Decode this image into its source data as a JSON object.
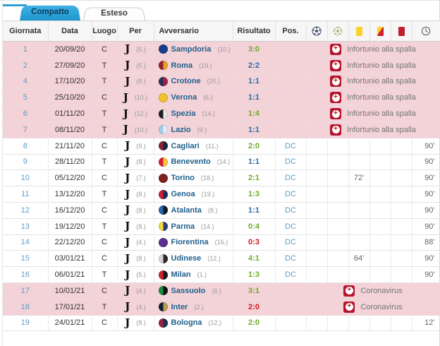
{
  "tabs": [
    {
      "label": "Compatto",
      "active": true
    },
    {
      "label": "Esteso",
      "active": false
    }
  ],
  "columns": {
    "giornata": "Giornata",
    "data": "Data",
    "luogo": "Luogo",
    "per": "Per",
    "avversario": "Avversario",
    "risultato": "Risultato",
    "pos": "Pos."
  },
  "icon_columns": [
    "goals-icon",
    "assists-icon",
    "yellow-card-icon",
    "yellow-red-card-icon",
    "red-card-icon",
    "minutes-clock-icon"
  ],
  "colors": {
    "tab_active": "#2d9fd6",
    "win": "#6faa27",
    "draw": "#2b6da8",
    "loss": "#cf1c24",
    "highlight_row": "#f3d2d8",
    "injury_icon": "#b5152d",
    "link": "#5b9dc9",
    "team_link": "#22618e"
  },
  "rows": [
    {
      "giornata": "1",
      "data": "20/09/20",
      "luogo": "C",
      "per_pos": "(5.)",
      "opponent": "Sampdoria",
      "opponent_pos": "(10.)",
      "result": "3:0",
      "result_type": "win",
      "highlight": true,
      "special": "Infortunio alla spalla",
      "crest": [
        "#1b3c8c",
        "#1b3c8c"
      ]
    },
    {
      "giornata": "2",
      "data": "27/09/20",
      "luogo": "T",
      "per_pos": "(5.)",
      "opponent": "Roma",
      "opponent_pos": "(19.)",
      "result": "2:2",
      "result_type": "draw",
      "highlight": true,
      "special": "Infortunio alla spalla",
      "crest": [
        "#8e2134",
        "#e3a520"
      ]
    },
    {
      "giornata": "4",
      "data": "17/10/20",
      "luogo": "T",
      "per_pos": "(8.)",
      "opponent": "Crotone",
      "opponent_pos": "(20.)",
      "result": "1:1",
      "result_type": "draw",
      "highlight": true,
      "special": "Infortunio alla spalla",
      "crest": [
        "#2a2f5e",
        "#9e2444"
      ]
    },
    {
      "giornata": "5",
      "data": "25/10/20",
      "luogo": "C",
      "per_pos": "(10.)",
      "opponent": "Verona",
      "opponent_pos": "(6.)",
      "result": "1:1",
      "result_type": "draw",
      "highlight": true,
      "special": "Infortunio alla spalla",
      "crest": [
        "#f2c12e",
        "#f2c12e"
      ]
    },
    {
      "giornata": "6",
      "data": "01/11/20",
      "luogo": "T",
      "per_pos": "(12.)",
      "opponent": "Spezia",
      "opponent_pos": "(14.)",
      "result": "1:4",
      "result_type": "win",
      "highlight": true,
      "special": "Infortunio alla spalla",
      "crest": [
        "#1d1d22",
        "#e8e8e8"
      ]
    },
    {
      "giornata": "7",
      "data": "08/11/20",
      "luogo": "T",
      "per_pos": "(10.)",
      "opponent": "Lazio",
      "opponent_pos": "(9.)",
      "result": "1:1",
      "result_type": "draw",
      "highlight": true,
      "special": "Infortunio alla spalla",
      "crest": [
        "#a8cbe8",
        "#dfeefb"
      ]
    },
    {
      "giornata": "8",
      "data": "21/11/20",
      "luogo": "C",
      "per_pos": "(9.)",
      "opponent": "Cagliari",
      "opponent_pos": "(11.)",
      "result": "2:0",
      "result_type": "win",
      "pos": "DC",
      "minutes": "90'",
      "crest": [
        "#8c2332",
        "#13284a"
      ]
    },
    {
      "giornata": "9",
      "data": "28/11/20",
      "luogo": "T",
      "per_pos": "(8.)",
      "opponent": "Benevento",
      "opponent_pos": "(14.)",
      "result": "1:1",
      "result_type": "draw",
      "pos": "DC",
      "minutes": "90'",
      "crest": [
        "#d3212d",
        "#f5c63f"
      ]
    },
    {
      "giornata": "10",
      "data": "05/12/20",
      "luogo": "C",
      "per_pos": "(7.)",
      "opponent": "Torino",
      "opponent_pos": "(18.)",
      "result": "2:1",
      "result_type": "win",
      "pos": "DC",
      "booked": "72'",
      "minutes": "90'",
      "crest": [
        "#7f2021",
        "#7f2021"
      ]
    },
    {
      "giornata": "11",
      "data": "13/12/20",
      "luogo": "T",
      "per_pos": "(8.)",
      "opponent": "Genoa",
      "opponent_pos": "(19.)",
      "result": "1:3",
      "result_type": "win",
      "pos": "DC",
      "minutes": "90'",
      "crest": [
        "#c81f34",
        "#1b2f5b"
      ]
    },
    {
      "giornata": "12",
      "data": "16/12/20",
      "luogo": "C",
      "per_pos": "(8.)",
      "opponent": "Atalanta",
      "opponent_pos": "(8.)",
      "result": "1:1",
      "result_type": "draw",
      "pos": "DC",
      "minutes": "90'",
      "crest": [
        "#2667ad",
        "#16181d"
      ]
    },
    {
      "giornata": "13",
      "data": "19/12/20",
      "luogo": "T",
      "per_pos": "(8.)",
      "opponent": "Parma",
      "opponent_pos": "(14.)",
      "result": "0:4",
      "result_type": "win",
      "pos": "DC",
      "minutes": "90'",
      "crest": [
        "#f5d93c",
        "#2a3f77"
      ]
    },
    {
      "giornata": "14",
      "data": "22/12/20",
      "luogo": "C",
      "per_pos": "(4.)",
      "opponent": "Fiorentina",
      "opponent_pos": "(16.)",
      "result": "0:3",
      "result_type": "loss",
      "pos": "DC",
      "minutes": "88'",
      "crest": [
        "#5b2e90",
        "#5b2e90"
      ]
    },
    {
      "giornata": "15",
      "data": "03/01/21",
      "luogo": "C",
      "per_pos": "(8.)",
      "opponent": "Udinese",
      "opponent_pos": "(12.)",
      "result": "4:1",
      "result_type": "win",
      "pos": "DC",
      "booked": "64'",
      "minutes": "90'",
      "crest": [
        "#d8d8d8",
        "#2b2b2b"
      ]
    },
    {
      "giornata": "16",
      "data": "06/01/21",
      "luogo": "T",
      "per_pos": "(5.)",
      "opponent": "Milan",
      "opponent_pos": "(1.)",
      "result": "1:3",
      "result_type": "win",
      "pos": "DC",
      "minutes": "90'",
      "crest": [
        "#cf1f33",
        "#1a1a1a"
      ]
    },
    {
      "giornata": "17",
      "data": "10/01/21",
      "luogo": "C",
      "per_pos": "(4.)",
      "opponent": "Sassuolo",
      "opponent_pos": "(6.)",
      "result": "3:1",
      "result_type": "win",
      "highlight": true,
      "special": "Coronavirus",
      "crest": [
        "#1b8a3e",
        "#101010"
      ]
    },
    {
      "giornata": "18",
      "data": "17/01/21",
      "luogo": "T",
      "per_pos": "(4.)",
      "opponent": "Inter",
      "opponent_pos": "(2.)",
      "result": "2:0",
      "result_type": "loss",
      "highlight": true,
      "special": "Coronavirus",
      "crest": [
        "#13202e",
        "#b99c57"
      ]
    },
    {
      "giornata": "19",
      "data": "24/01/21",
      "luogo": "C",
      "per_pos": "(8.)",
      "opponent": "Bologna",
      "opponent_pos": "(12.)",
      "result": "2:0",
      "result_type": "win",
      "pos": "",
      "minutes": "12'",
      "crest": [
        "#9c2138",
        "#1c3257"
      ]
    }
  ]
}
